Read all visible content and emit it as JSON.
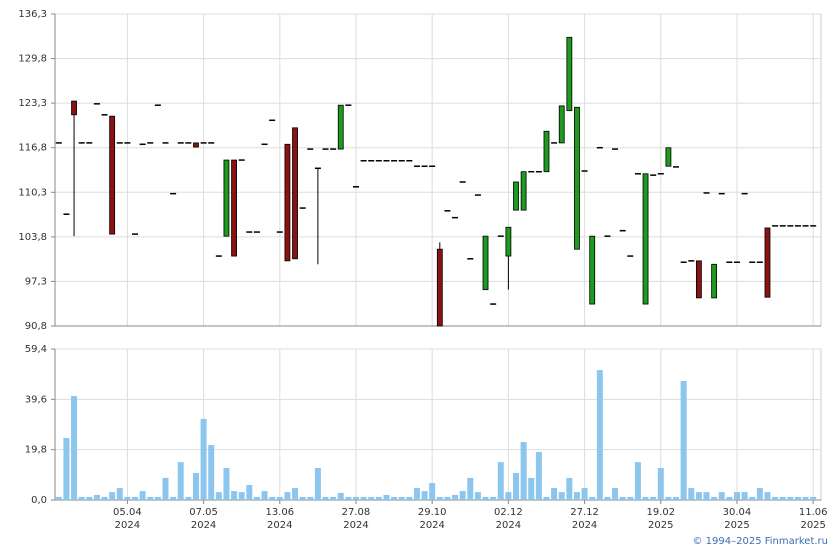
{
  "chart_data": [
    {
      "type": "candlestick",
      "up_color": "#1e9a1e",
      "down_color": "#8b1212",
      "grid": true,
      "ylim": [
        90.8,
        136.3
      ],
      "yticks": [
        {
          "value": 90.8,
          "label": "90,8"
        },
        {
          "value": 97.3,
          "label": "97,3"
        },
        {
          "value": 103.8,
          "label": "103,8"
        },
        {
          "value": 110.3,
          "label": "110,3"
        },
        {
          "value": 116.8,
          "label": "116,8"
        },
        {
          "value": 123.3,
          "label": "123,3"
        },
        {
          "value": 129.8,
          "label": "129,8"
        },
        {
          "value": 136.3,
          "label": "136,3"
        }
      ],
      "open": [
        117.5,
        107.1,
        123.6,
        117.5,
        117.5,
        123.2,
        121.6,
        121.4,
        117.5,
        117.5,
        104.2,
        117.3,
        117.5,
        123.0,
        117.5,
        110.1,
        117.5,
        117.5,
        117.5,
        117.5,
        117.5,
        101.0,
        103.9,
        115.0,
        115.0,
        104.5,
        104.5,
        117.3,
        120.8,
        104.5,
        117.3,
        119.7,
        108.0,
        116.6,
        113.8,
        116.6,
        116.6,
        116.6,
        123.0,
        111.1,
        114.9,
        114.9,
        114.9,
        114.9,
        114.9,
        114.9,
        114.9,
        114.1,
        114.1,
        114.1,
        102.0,
        107.6,
        106.6,
        111.8,
        100.6,
        109.9,
        96.1,
        94.0,
        103.9,
        101.0,
        107.7,
        107.7,
        113.3,
        113.3,
        113.3,
        117.5,
        117.5,
        122.2,
        102.0,
        113.4,
        94.0,
        116.8,
        103.9,
        116.6,
        104.7,
        101.0,
        113.0,
        94.0,
        112.8,
        113.0,
        114.1,
        114.0,
        100.1,
        100.3,
        100.3,
        110.2,
        94.9,
        110.1,
        100.1,
        100.1,
        110.1,
        100.1,
        100.1,
        105.1,
        105.4,
        105.4,
        105.4,
        105.4,
        105.4,
        105.4
      ],
      "high": [
        117.5,
        107.1,
        123.6,
        117.5,
        117.5,
        123.2,
        121.6,
        121.4,
        117.5,
        117.5,
        104.2,
        117.3,
        117.5,
        123.0,
        117.5,
        110.1,
        117.5,
        117.5,
        117.5,
        117.5,
        117.5,
        101.0,
        115.0,
        115.0,
        115.0,
        104.5,
        104.5,
        117.3,
        120.8,
        104.5,
        117.3,
        119.7,
        108.0,
        116.6,
        113.8,
        116.6,
        116.6,
        123.0,
        123.0,
        111.1,
        114.9,
        114.9,
        114.9,
        114.9,
        114.9,
        114.9,
        114.9,
        114.1,
        114.1,
        114.1,
        103.0,
        107.6,
        106.6,
        111.8,
        100.6,
        109.9,
        103.9,
        94.0,
        103.9,
        105.2,
        111.8,
        113.3,
        113.3,
        113.3,
        119.2,
        117.5,
        122.9,
        132.9,
        122.7,
        113.4,
        103.9,
        116.8,
        103.9,
        116.6,
        104.7,
        101.0,
        113.0,
        113.0,
        112.8,
        113.0,
        116.8,
        114.0,
        100.1,
        100.3,
        100.3,
        110.2,
        99.8,
        110.1,
        100.1,
        100.1,
        110.1,
        100.1,
        100.1,
        105.1,
        105.4,
        105.4,
        105.4,
        105.4,
        105.4,
        105.4
      ],
      "low": [
        117.5,
        107.1,
        103.9,
        117.5,
        117.5,
        123.2,
        121.6,
        104.2,
        117.5,
        117.5,
        104.2,
        117.3,
        117.5,
        123.0,
        117.5,
        110.1,
        117.5,
        117.5,
        116.9,
        117.5,
        117.5,
        101.0,
        103.9,
        101.0,
        115.0,
        104.5,
        104.5,
        117.3,
        120.8,
        104.5,
        100.3,
        100.6,
        108.0,
        116.6,
        99.8,
        116.6,
        116.6,
        116.6,
        123.0,
        111.1,
        114.9,
        114.9,
        114.9,
        114.9,
        114.9,
        114.9,
        114.9,
        114.1,
        114.1,
        114.1,
        90.8,
        107.6,
        106.6,
        111.8,
        100.6,
        109.9,
        96.1,
        94.0,
        103.9,
        96.1,
        107.7,
        107.7,
        113.3,
        113.3,
        113.3,
        117.5,
        117.5,
        122.2,
        102.0,
        113.4,
        94.0,
        116.8,
        103.9,
        116.6,
        104.7,
        101.0,
        113.0,
        94.0,
        112.8,
        113.0,
        114.1,
        114.0,
        100.1,
        100.3,
        94.9,
        110.2,
        94.9,
        110.1,
        100.1,
        100.1,
        110.1,
        100.1,
        100.1,
        95.0,
        105.4,
        105.4,
        105.4,
        105.4,
        105.4,
        105.4
      ],
      "close": [
        117.5,
        107.1,
        121.6,
        117.5,
        117.5,
        123.2,
        121.6,
        104.2,
        117.5,
        117.5,
        104.2,
        117.3,
        117.5,
        123.0,
        117.5,
        110.1,
        117.5,
        117.5,
        116.9,
        117.5,
        117.5,
        101.0,
        115.0,
        101.0,
        115.0,
        104.5,
        104.5,
        117.3,
        120.8,
        104.5,
        100.3,
        100.6,
        108.0,
        116.6,
        113.8,
        116.6,
        116.6,
        123.0,
        123.0,
        111.1,
        114.9,
        114.9,
        114.9,
        114.9,
        114.9,
        114.9,
        114.9,
        114.1,
        114.1,
        114.1,
        90.8,
        107.6,
        106.6,
        111.8,
        100.6,
        109.9,
        103.9,
        94.0,
        103.9,
        105.2,
        111.8,
        113.3,
        113.3,
        113.3,
        119.2,
        117.5,
        122.9,
        132.9,
        122.7,
        113.4,
        103.9,
        116.8,
        103.9,
        116.6,
        104.7,
        101.0,
        113.0,
        113.0,
        112.8,
        113.0,
        116.8,
        114.0,
        100.1,
        100.3,
        94.9,
        110.2,
        99.8,
        110.1,
        100.1,
        100.1,
        110.1,
        100.1,
        100.1,
        95.0,
        105.4,
        105.4,
        105.4,
        105.4,
        105.4,
        105.4
      ]
    },
    {
      "type": "bar",
      "color": "#8cc6ef",
      "grid": true,
      "ylim": [
        0,
        59.4
      ],
      "yticks": [
        {
          "value": 0,
          "label": "0,0"
        },
        {
          "value": 19.8,
          "label": "19,8"
        },
        {
          "value": 39.6,
          "label": "39,6"
        },
        {
          "value": 59.4,
          "label": "59,4"
        }
      ],
      "categories": [
        null,
        null,
        null,
        null,
        null,
        null,
        null,
        null,
        null,
        "05.04\n2024",
        null,
        null,
        null,
        null,
        null,
        null,
        null,
        null,
        null,
        "07.05\n2024",
        null,
        null,
        null,
        null,
        null,
        null,
        null,
        null,
        null,
        "13.06\n2024",
        null,
        null,
        null,
        null,
        null,
        null,
        null,
        null,
        null,
        "27.08\n2024",
        null,
        null,
        null,
        null,
        null,
        null,
        null,
        null,
        null,
        "29.10\n2024",
        null,
        null,
        null,
        null,
        null,
        null,
        null,
        null,
        null,
        "02.12\n2024",
        null,
        null,
        null,
        null,
        null,
        null,
        null,
        null,
        null,
        "27.12\n2024",
        null,
        null,
        null,
        null,
        null,
        null,
        null,
        null,
        null,
        "19.02\n2025",
        null,
        null,
        null,
        null,
        null,
        null,
        null,
        null,
        null,
        "30.04\n2025",
        null,
        null,
        null,
        null,
        null,
        null,
        null,
        null,
        null,
        "11.06\n2025"
      ],
      "values": [
        1.2,
        24.4,
        40.9,
        1.2,
        1.2,
        2,
        1.2,
        3.1,
        4.7,
        1.2,
        1.2,
        3.5,
        1.2,
        1.2,
        8.7,
        1.2,
        14.9,
        1.2,
        10.6,
        31.9,
        21.6,
        3.1,
        12.6,
        3.5,
        3.1,
        5.9,
        1.2,
        3.5,
        1.2,
        1.2,
        3.1,
        4.7,
        1.2,
        1.2,
        12.6,
        1.2,
        1.2,
        2.8,
        1.2,
        1.2,
        1.2,
        1.2,
        1.2,
        2,
        1.2,
        1.2,
        1.2,
        4.7,
        3.5,
        6.7,
        1.2,
        1.2,
        2,
        3.5,
        8.7,
        3.1,
        1.2,
        1.2,
        14.9,
        3.1,
        10.6,
        22.8,
        8.7,
        18.9,
        1.2,
        4.7,
        3.1,
        8.7,
        3.1,
        4.7,
        1.2,
        51.1,
        1.2,
        4.7,
        1.2,
        1.2,
        14.9,
        1.2,
        1.2,
        12.6,
        1.2,
        1.2,
        46.8,
        4.7,
        3.1,
        3.1,
        1.2,
        3.1,
        1.2,
        3.1,
        3.1,
        1.2,
        4.7,
        3.1,
        1.2,
        1.2,
        1.2,
        1.2,
        1.2,
        1.2
      ]
    }
  ],
  "watermark": "© 1994–2025 Finmarket.ru"
}
